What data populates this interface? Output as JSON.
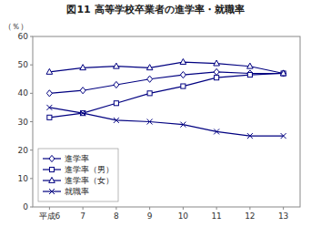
{
  "chart_data": {
    "type": "line",
    "title": "図11  高等学校卒業者の進学率・就職率",
    "ylabel": "（％）",
    "x": [
      6,
      7,
      8,
      9,
      10,
      11,
      12,
      13
    ],
    "xlim": [
      5.5,
      13.5
    ],
    "xticks": [
      {
        "value": 6,
        "label": "平成6"
      },
      7,
      8,
      9,
      10,
      11,
      12,
      13
    ],
    "ylim": [
      0,
      60
    ],
    "yticks": [
      0,
      10,
      20,
      30,
      40,
      50,
      60
    ],
    "grid": false,
    "legend": "lower left",
    "series": [
      {
        "name": "進学率",
        "color": "#000080",
        "marker": "diamond",
        "line_style": "solid",
        "values": [
          40.0,
          41.0,
          43.0,
          45.0,
          46.5,
          47.5,
          47.0,
          47.0
        ]
      },
      {
        "name": "進学率（男）",
        "color": "#000080",
        "marker": "square",
        "line_style": "solid",
        "values": [
          31.5,
          33.0,
          36.5,
          40.0,
          42.5,
          45.5,
          46.5,
          47.0
        ]
      },
      {
        "name": "進学率（女）",
        "color": "#000080",
        "marker": "triangle",
        "line_style": "solid",
        "values": [
          47.5,
          49.0,
          49.5,
          49.0,
          51.0,
          50.5,
          49.5,
          47.0
        ]
      },
      {
        "name": "就職率",
        "color": "#000080",
        "marker": "x",
        "line_style": "solid",
        "values": [
          35.0,
          33.0,
          30.5,
          30.0,
          29.0,
          26.5,
          25.0,
          25.0
        ]
      }
    ]
  }
}
